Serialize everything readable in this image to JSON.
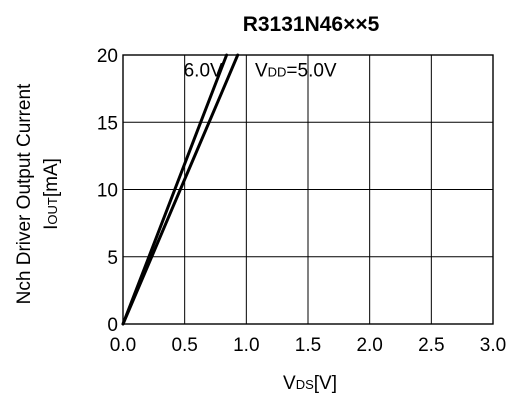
{
  "chart_data": {
    "type": "line",
    "title": "R3131N46××5",
    "ylabel_line1": "Nch Driver Output Current",
    "ylabel_line2_main": "I",
    "ylabel_line2_sub": "OUT",
    "ylabel_line2_unit": "[mA]",
    "xlabel_main": "V",
    "xlabel_sub": "DS",
    "xlabel_unit": "[V]",
    "xlim": [
      0,
      3.0
    ],
    "ylim": [
      0,
      20
    ],
    "xticks": [
      0,
      0.5,
      1.0,
      1.5,
      2.0,
      2.5,
      3.0
    ],
    "xtick_labels": [
      "0.0",
      "0.5",
      "1.0",
      "1.5",
      "2.0",
      "2.5",
      "3.0"
    ],
    "yticks": [
      0,
      5,
      10,
      15,
      20
    ],
    "ytick_labels": [
      "0",
      "5",
      "10",
      "15",
      "20"
    ],
    "grid": true,
    "series": [
      {
        "name": "6.0V",
        "x": [
          0,
          0.2,
          0.4,
          0.6,
          0.84
        ],
        "y": [
          0,
          4.76,
          9.52,
          14.29,
          20
        ]
      },
      {
        "name": "V_DD=5.0V",
        "x": [
          0,
          0.2,
          0.4,
          0.6,
          0.8,
          0.93
        ],
        "y": [
          0,
          4.3,
          8.6,
          12.9,
          17.2,
          20
        ]
      }
    ],
    "annotations": [
      {
        "id": "label-6v",
        "text": "6.0V",
        "x": 0.65,
        "y": 18.4
      },
      {
        "id": "label-5v-main",
        "text": "V",
        "x": 1.07,
        "y": 18.4
      },
      {
        "id": "label-5v-sub",
        "text": "DD",
        "x": 1.07,
        "y": 18.4
      },
      {
        "id": "label-5v-rest",
        "text": "=5.0V",
        "x": 1.07,
        "y": 18.4
      }
    ]
  }
}
